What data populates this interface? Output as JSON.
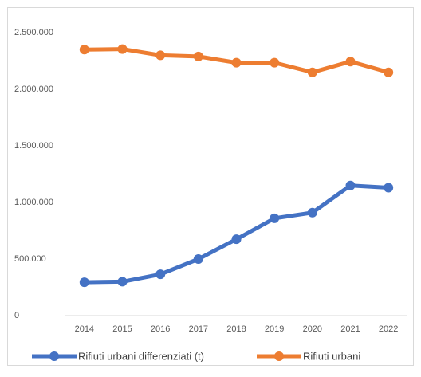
{
  "chart_data": {
    "type": "line",
    "categories": [
      "2014",
      "2015",
      "2016",
      "2017",
      "2018",
      "2019",
      "2020",
      "2021",
      "2022"
    ],
    "series": [
      {
        "name": "Rifiuti urbani differenziati (t)",
        "color": "#4472c4",
        "values": [
          295000,
          300000,
          365000,
          500000,
          675000,
          860000,
          910000,
          1150000,
          1130000
        ]
      },
      {
        "name": "Rifiuti urbani",
        "color": "#ed7d31",
        "values": [
          2350000,
          2355000,
          2300000,
          2290000,
          2235000,
          2235000,
          2150000,
          2245000,
          2150000
        ]
      }
    ],
    "ylim": [
      0,
      2500000
    ],
    "yticks": [
      0,
      {
        "value": 500000,
        "label": "500.000"
      },
      {
        "value": 1000000,
        "label": "1.000.000"
      },
      {
        "value": 1500000,
        "label": "1.500.000"
      },
      {
        "value": 2000000,
        "label": "2.000.000"
      },
      {
        "value": 2500000,
        "label": "2.500.000"
      }
    ],
    "grid": false,
    "legend": "bottom"
  }
}
